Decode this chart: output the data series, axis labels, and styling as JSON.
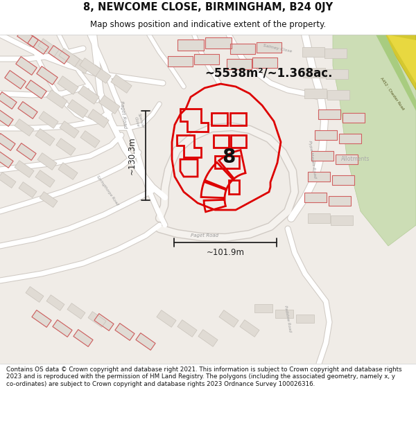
{
  "title": "8, NEWCOME CLOSE, BIRMINGHAM, B24 0JY",
  "subtitle": "Map shows position and indicative extent of the property.",
  "area_text": "~5538m²/~1.368ac.",
  "width_label": "~101.9m",
  "height_label": "~130.3m",
  "label_number": "8",
  "footer": "Contains OS data © Crown copyright and database right 2021. This information is subject to Crown copyright and database rights 2023 and is reproduced with the permission of HM Land Registry. The polygons (including the associated geometry, namely x, y co-ordinates) are subject to Crown copyright and database rights 2023 Ordnance Survey 100026316.",
  "map_bg": "#f5f2ee",
  "building_fill": "#e0dbd4",
  "building_edge": "#c8c2ba",
  "road_fill": "#ffffff",
  "road_edge": "#d0cac4",
  "property_color": "#dd0000",
  "green_color": "#c8ddb8",
  "title_color": "#111111",
  "footer_color": "#111111",
  "header_bg": "#ffffff",
  "footer_bg": "#ffffff",
  "dim_line_color": "#222222",
  "road_label_color": "#888888",
  "a452_color": "#e8d840",
  "a452_green": "#90c860"
}
